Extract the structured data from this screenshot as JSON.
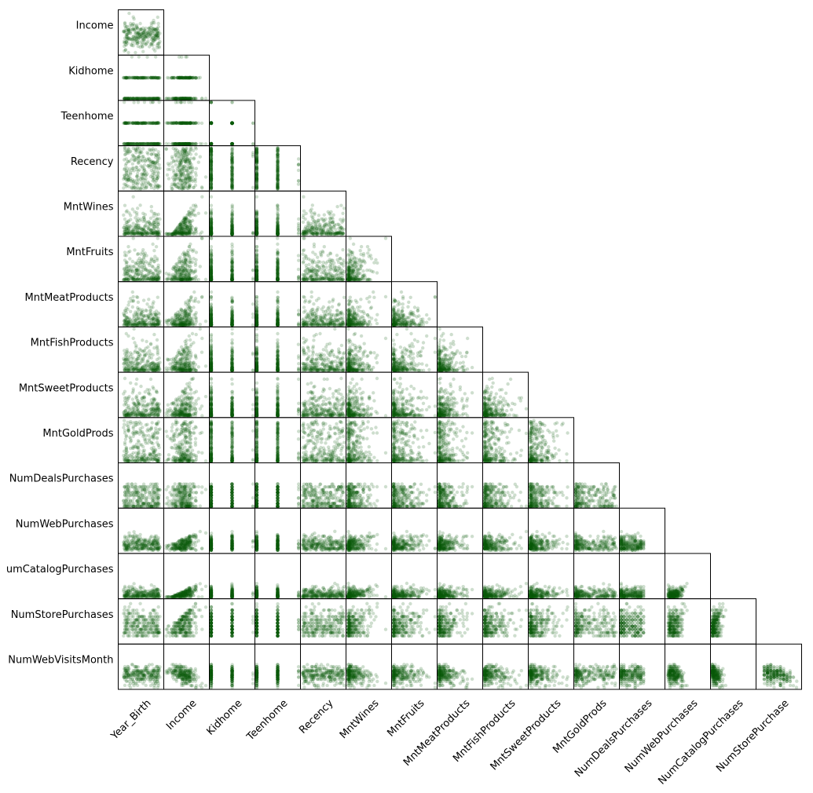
{
  "chart_data": {
    "type": "scatter",
    "title": "",
    "layout": "lower-triangle scatter matrix",
    "point_color": "#0a5a0a",
    "point_alpha": 0.2,
    "grid": false,
    "legend": "none",
    "row_variables": [
      "Income",
      "Kidhome",
      "Teenhome",
      "Recency",
      "MntWines",
      "MntFruits",
      "MntMeatProducts",
      "MntFishProducts",
      "MntSweetProducts",
      "MntGoldProds",
      "NumDealsPurchases",
      "NumWebPurchases",
      "NumCatalogPurchases",
      "NumStorePurchases",
      "NumWebVisitsMonth"
    ],
    "row_labels_shown": [
      "Income",
      "Kidhome",
      "Teenhome",
      "Recency",
      "MntWines",
      "MntFruits",
      "MntMeatProducts",
      "MntFishProducts",
      "MntSweetProducts",
      "MntGoldProds",
      "NumDealsPurchases",
      "NumWebPurchases",
      "umCatalogPurchases",
      "NumStorePurchases",
      "NumWebVisitsMonth"
    ],
    "column_variables": [
      "Year_Birth",
      "Income",
      "Kidhome",
      "Teenhome",
      "Recency",
      "MntWines",
      "MntFruits",
      "MntMeatProducts",
      "MntFishProducts",
      "MntSweetProducts",
      "MntGoldProds",
      "NumDealsPurchases",
      "NumWebPurchases",
      "NumCatalogPurchases",
      "NumStorePurchase"
    ],
    "variable_ranges": {
      "Year_Birth": [
        1940,
        2000
      ],
      "Income": [
        0,
        120000
      ],
      "Kidhome": [
        0,
        2
      ],
      "Teenhome": [
        0,
        2
      ],
      "Recency": [
        0,
        99
      ],
      "MntWines": [
        0,
        1500
      ],
      "MntFruits": [
        0,
        200
      ],
      "MntMeatProducts": [
        0,
        1000
      ],
      "MntFishProducts": [
        0,
        260
      ],
      "MntSweetProducts": [
        0,
        200
      ],
      "MntGoldProds": [
        0,
        250
      ],
      "NumDealsPurchases": [
        0,
        15
      ],
      "NumWebPurchases": [
        0,
        27
      ],
      "NumCatalogPurchases": [
        0,
        28
      ],
      "NumStorePurchases": [
        0,
        13
      ],
      "NumWebVisitsMonth": [
        0,
        20
      ]
    },
    "discrete_variables": [
      "Kidhome",
      "Teenhome",
      "NumDealsPurchases",
      "NumWebPurchases",
      "NumCatalogPurchases",
      "NumStorePurchases",
      "NumWebVisitsMonth"
    ],
    "points_per_panel": 260
  }
}
